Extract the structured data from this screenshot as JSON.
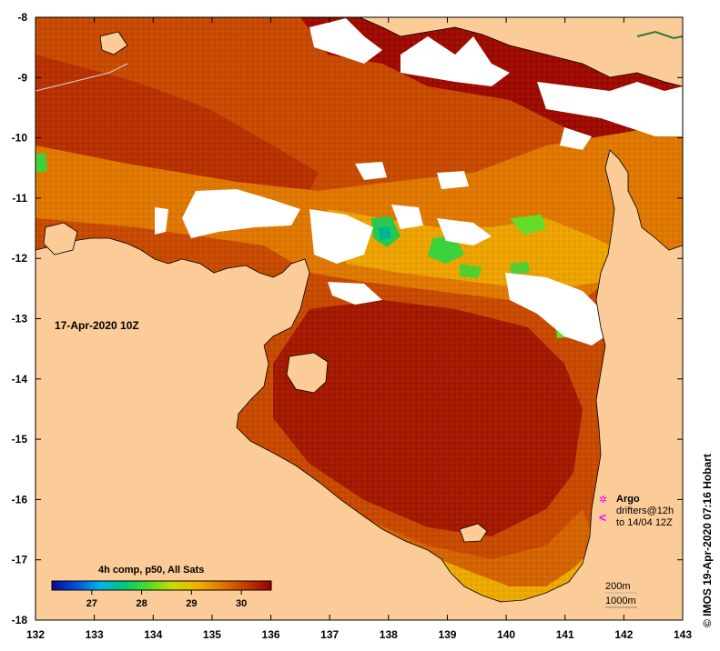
{
  "map": {
    "timestamp": "17-Apr-2020 10Z",
    "credit": "© IMOS 19-Apr-2020 07:16 Hobart",
    "lon_ticks": [
      "132",
      "133",
      "134",
      "135",
      "136",
      "137",
      "138",
      "139",
      "140",
      "141",
      "142",
      "143"
    ],
    "lat_ticks": [
      "-8",
      "-9",
      "-10",
      "-11",
      "-12",
      "-13",
      "-14",
      "-15",
      "-16",
      "-17",
      "-18"
    ],
    "extent": {
      "lon": [
        132,
        143
      ],
      "lat": [
        -18,
        -8
      ]
    }
  },
  "colorbar": {
    "title": "4h comp, p50, All Sats",
    "tick_labels": [
      "27",
      "28",
      "29",
      "30"
    ],
    "range": [
      26.2,
      30.6
    ],
    "colors": [
      "#0a0a96",
      "#0050dc",
      "#00b4f0",
      "#00c878",
      "#50dc28",
      "#c8dc00",
      "#f0b400",
      "#e67800",
      "#c83c00",
      "#960000"
    ]
  },
  "legend": {
    "argo_label": "Argo",
    "argo_symbol": "✲",
    "argo_color": "#ff00ff",
    "drifter_label": "drifters@12h",
    "drifter_symbol": "<",
    "drifter_color": "#ff00ff",
    "drifter_range": "to 14/04 12Z"
  },
  "contours": {
    "label_200": "200m",
    "label_1000": "1000m"
  },
  "colors": {
    "land": "#fbcb98",
    "sst_warm": "#c23c00",
    "sst_hot": "#9e0a00",
    "sst_mid": "#df7400",
    "sst_cool": "#eea400",
    "cloud": "#ffffff"
  }
}
